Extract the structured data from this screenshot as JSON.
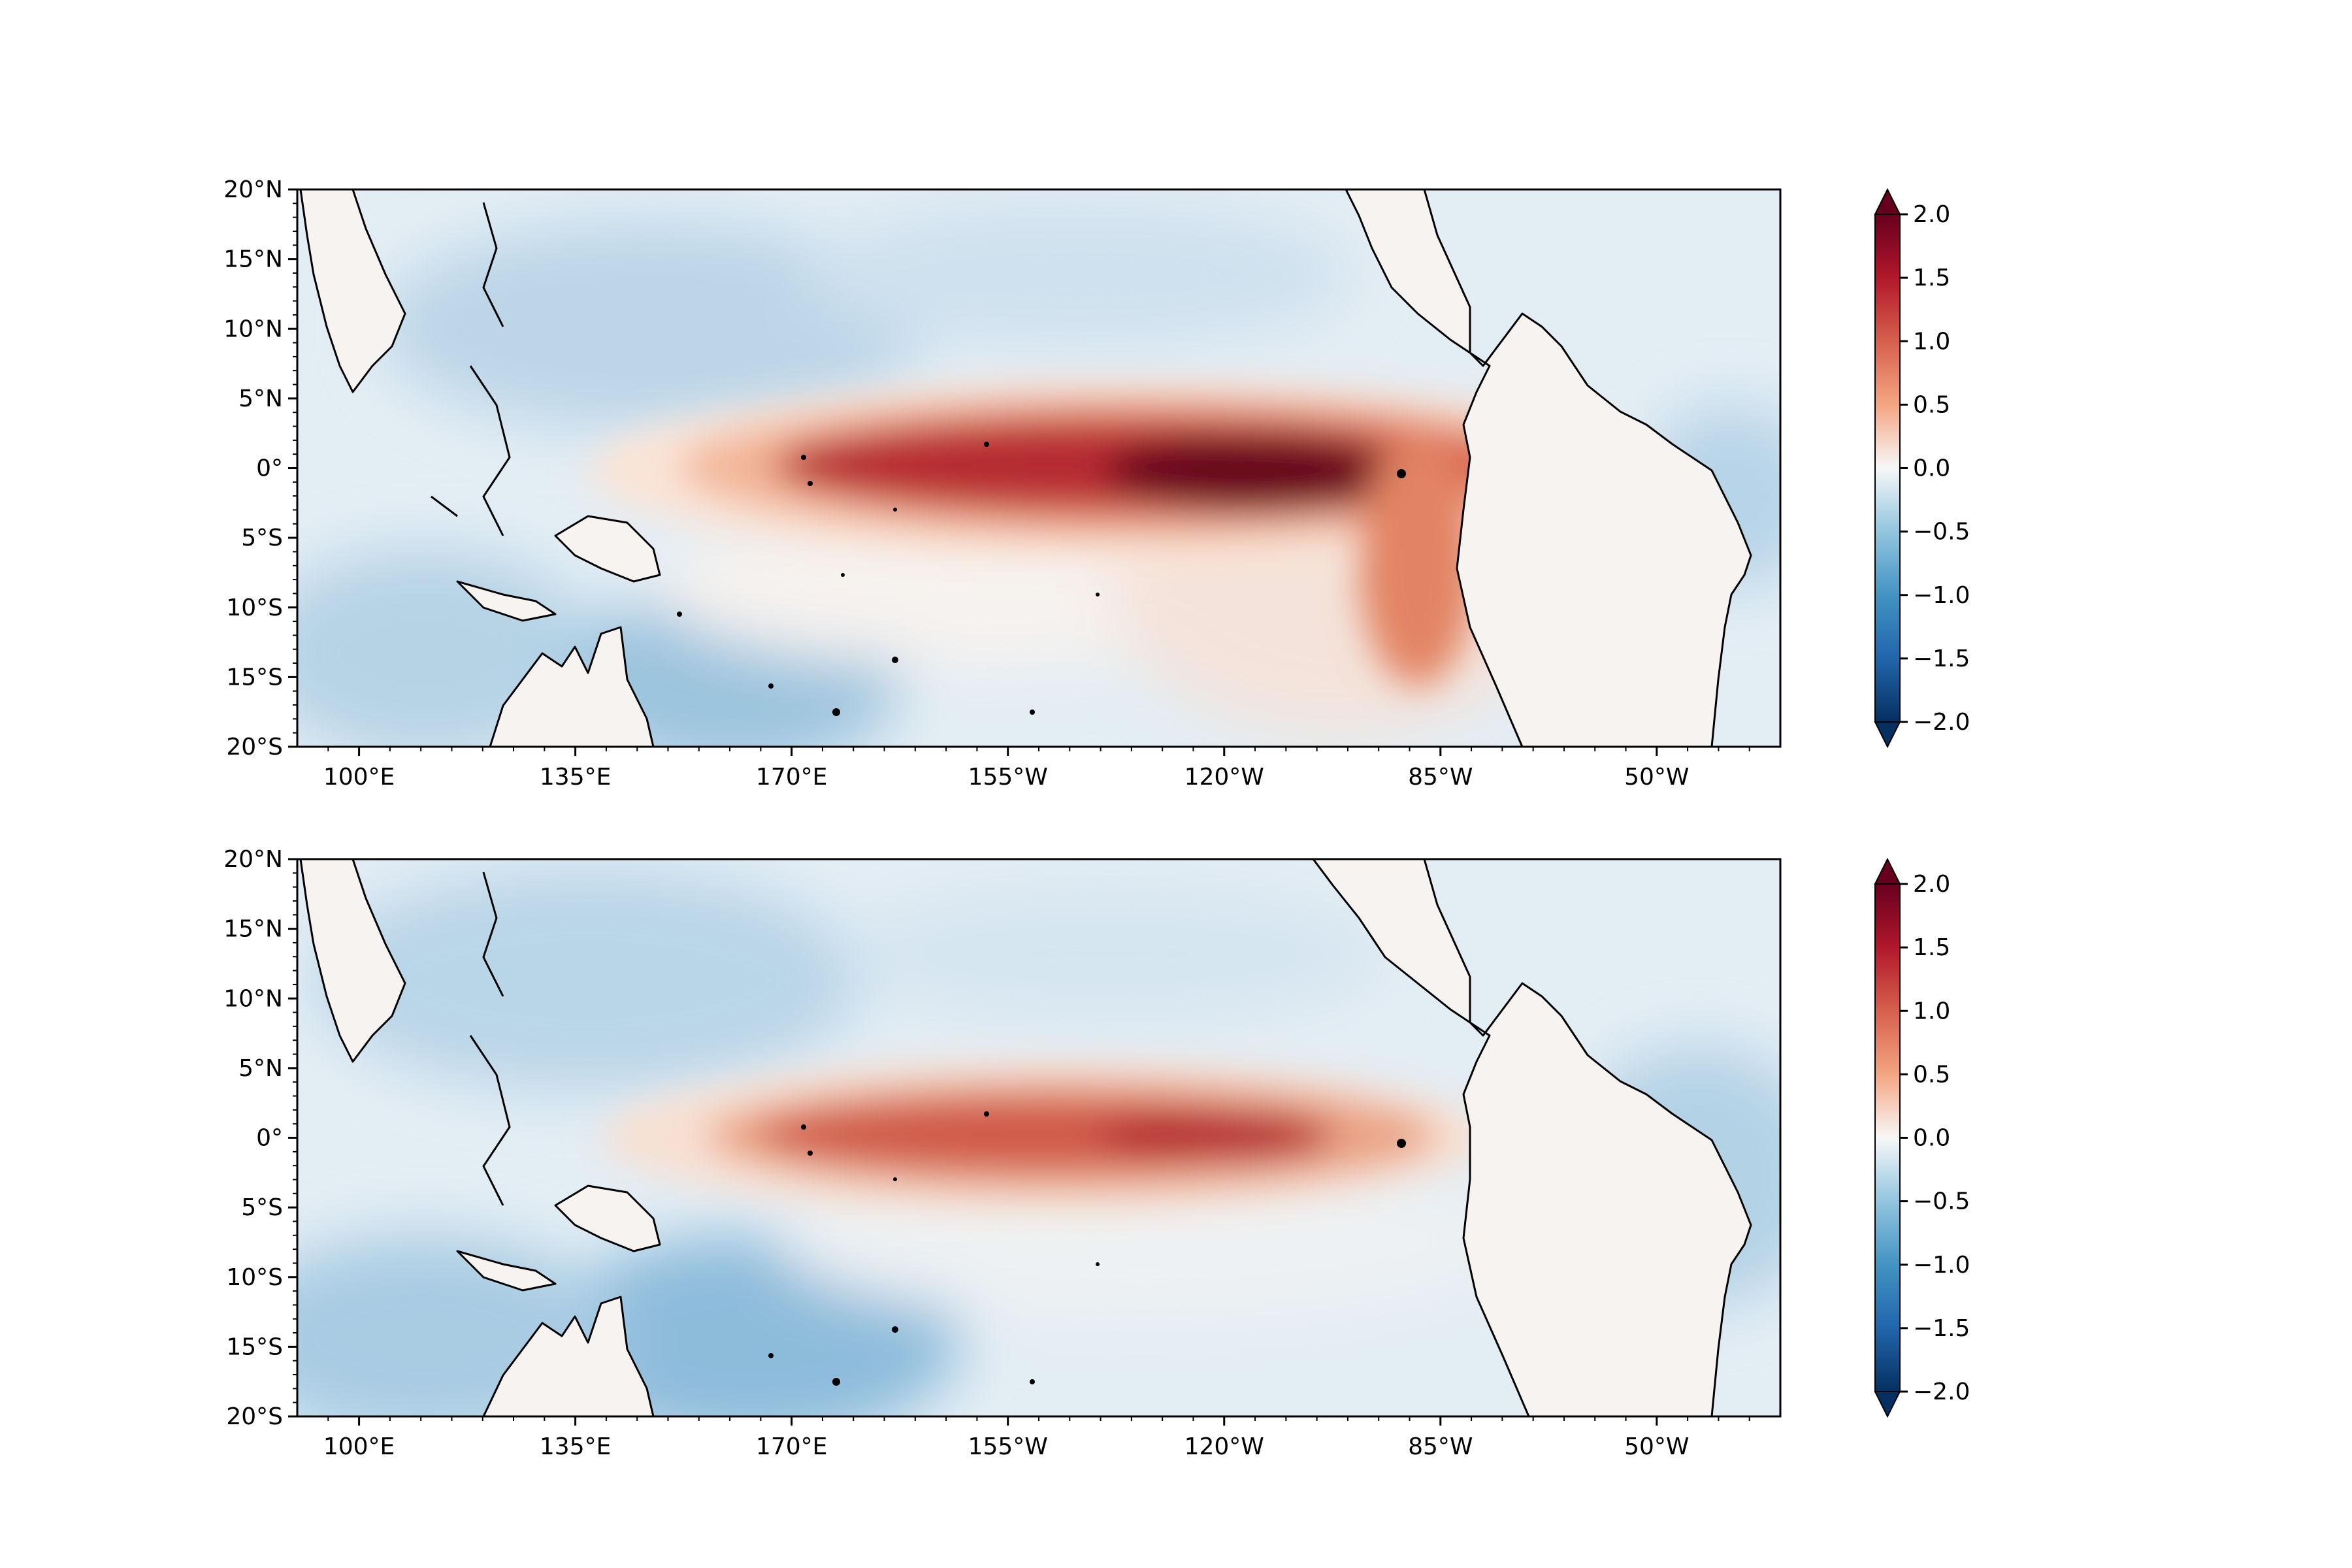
{
  "map_panels": [
    {
      "id": "top",
      "pattern": "strong",
      "lat_ticks": [
        "20°N",
        "15°N",
        "10°N",
        "5°N",
        "0°",
        "5°S",
        "10°S",
        "15°S",
        "20°S"
      ],
      "lon_ticks": [
        "100°E",
        "135°E",
        "170°E",
        "155°W",
        "120°W",
        "85°W",
        "50°W"
      ],
      "colorbar": {
        "ticks": [
          "2.0",
          "1.5",
          "1.0",
          "0.5",
          "0.0",
          "−0.5",
          "−1.0",
          "−1.5",
          "−2.0"
        ],
        "range": [
          -2.0,
          2.0
        ],
        "extend": "both",
        "colormap": "RdBu_r"
      }
    },
    {
      "id": "bottom",
      "pattern": "weak",
      "lat_ticks": [
        "20°N",
        "15°N",
        "10°N",
        "5°N",
        "0°",
        "5°S",
        "10°S",
        "15°S",
        "20°S"
      ],
      "lon_ticks": [
        "100°E",
        "135°E",
        "170°E",
        "155°W",
        "120°W",
        "85°W",
        "50°W"
      ],
      "colorbar": {
        "ticks": [
          "2.0",
          "1.5",
          "1.0",
          "0.5",
          "0.0",
          "−0.5",
          "−1.0",
          "−1.5",
          "−2.0"
        ],
        "range": [
          -2.0,
          2.0
        ],
        "extend": "both",
        "colormap": "RdBu_r"
      }
    }
  ],
  "map_extent": {
    "lon_range_east": [
      90,
      330
    ],
    "lat_range": [
      -20,
      20
    ]
  },
  "colors": {
    "dark_red": "#67001f",
    "red": "#d6604d",
    "neutral": "#f7f7f7",
    "blue": "#4393c3",
    "dark_blue": "#053061",
    "coastline": "#000000"
  }
}
